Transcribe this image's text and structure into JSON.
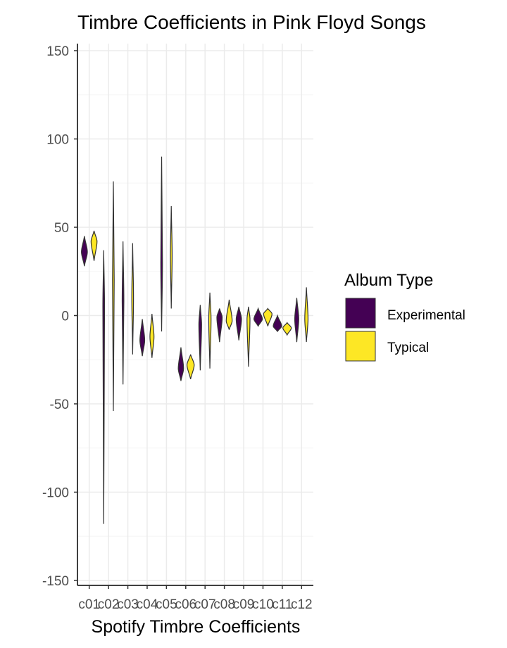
{
  "chart_data": {
    "type": "violin",
    "title": "Timbre Coefficients in Pink Floyd Songs",
    "xlabel": "Spotify Timbre Coefficients",
    "ylabel": "",
    "ylim": [
      -150,
      150
    ],
    "yticks": [
      "150",
      "100",
      "50",
      "0",
      "-50",
      "-100",
      "-150"
    ],
    "categories": [
      "c01",
      "c02",
      "c03",
      "c04",
      "c05",
      "c06",
      "c07",
      "c08",
      "c09",
      "c10",
      "c11",
      "c12"
    ],
    "legend": {
      "title": "Album Type",
      "placement": "right",
      "entries": [
        {
          "label": "Experimental",
          "color": "#440154"
        },
        {
          "label": "Typical",
          "color": "#FDE725"
        }
      ]
    },
    "series": [
      {
        "name": "Experimental",
        "color": "#440154",
        "distributions": [
          {
            "min": 28,
            "max": 45,
            "center": 36
          },
          {
            "min": -118,
            "max": 37,
            "center": 5
          },
          {
            "min": -39,
            "max": 42,
            "center": 8
          },
          {
            "min": -23,
            "max": -2,
            "center": -14
          },
          {
            "min": -9,
            "max": 90,
            "center": 30
          },
          {
            "min": -37,
            "max": -18,
            "center": -30
          },
          {
            "min": -31,
            "max": 6,
            "center": -5
          },
          {
            "min": -15,
            "max": 4,
            "center": -1
          },
          {
            "min": -14,
            "max": 5,
            "center": -2
          },
          {
            "min": -6,
            "max": 4,
            "center": -2
          },
          {
            "min": -9,
            "max": 0,
            "center": -6
          },
          {
            "min": -15,
            "max": 10,
            "center": -2
          }
        ]
      },
      {
        "name": "Typical",
        "color": "#FDE725",
        "distributions": [
          {
            "min": 31,
            "max": 48,
            "center": 42
          },
          {
            "min": -54,
            "max": 76,
            "center": 20
          },
          {
            "min": -22,
            "max": 41,
            "center": 10
          },
          {
            "min": -24,
            "max": 1,
            "center": -12
          },
          {
            "min": 4,
            "max": 62,
            "center": 34
          },
          {
            "min": -36,
            "max": -22,
            "center": -28
          },
          {
            "min": -30,
            "max": 13,
            "center": -2
          },
          {
            "min": -8,
            "max": 9,
            "center": -3
          },
          {
            "min": -29,
            "max": 5,
            "center": -2
          },
          {
            "min": -6,
            "max": 4,
            "center": 1
          },
          {
            "min": -11,
            "max": -4,
            "center": -7
          },
          {
            "min": -15,
            "max": 16,
            "center": -2
          }
        ]
      }
    ]
  }
}
